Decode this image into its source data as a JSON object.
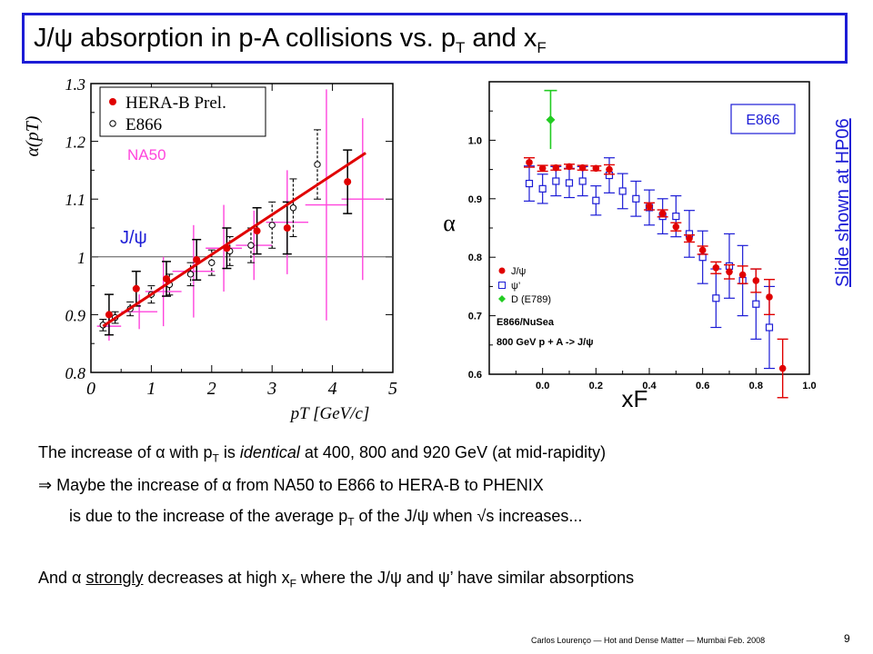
{
  "slide": {
    "title_main": "J/ψ absorption in p-A collisions vs. p",
    "title_sub1": "T",
    "title_mid": " and x",
    "title_sub2": "F",
    "side_link": "Slide shown at HP06",
    "footer": "Carlos Lourenço — Hot and Dense Matter — Mumbai Feb. 2008",
    "page_number": "9",
    "line1_a": "The increase of α with p",
    "line1_sub": "T",
    "line1_b": " is ",
    "line1_em": "identical",
    "line1_c": " at 400, 800 and 920 GeV (at mid-rapidity)",
    "line2": "⇒ Maybe the increase of α from NA50 to E866 to HERA-B to PHENIX",
    "line3_a": "is due to the increase of the average p",
    "line3_sub": "T",
    "line3_b": " of the J/ψ when √s increases...",
    "line4_a": "And α ",
    "line4_u": "strongly",
    "line4_b": " decreases at high x",
    "line4_sub": "F",
    "line4_c": " where the J/ψ and ψ’ have similar absorptions"
  },
  "chart_data": [
    {
      "type": "scatter",
      "xlabel": "p_T [GeV/c]",
      "ylabel": "α(p_T)",
      "xlim": [
        0,
        5
      ],
      "ylim": [
        0.8,
        1.3
      ],
      "xticks": [
        "0",
        "1",
        "2",
        "3",
        "4",
        "5"
      ],
      "yticks": [
        "0.8",
        "0.9",
        "1",
        "1.1",
        "1.2",
        "1.3"
      ],
      "legend": [
        "HERA-B Prel.",
        "E866"
      ],
      "legend_position": "top-left",
      "annotations": [
        "NA50",
        "J/ψ"
      ],
      "colors": {
        "herab": "#e00000",
        "na50": "#ff44dd",
        "fit": "#e00000",
        "e866": "#000000"
      },
      "fit_line": {
        "x": [
          0.2,
          4.55
        ],
        "y": [
          0.88,
          1.18
        ]
      },
      "reference_y": 1.0,
      "series": [
        {
          "name": "HERA-B Prel.",
          "x": [
            0.3,
            0.75,
            1.25,
            1.75,
            2.25,
            2.75,
            3.25,
            4.25
          ],
          "y": [
            0.9,
            0.945,
            0.962,
            0.995,
            1.015,
            1.045,
            1.05,
            1.13
          ],
          "err": [
            0.035,
            0.03,
            0.03,
            0.035,
            0.035,
            0.04,
            0.045,
            0.055
          ]
        },
        {
          "name": "E866",
          "x": [
            0.2,
            0.4,
            0.65,
            1.0,
            1.3,
            1.65,
            2.0,
            2.3,
            2.65,
            3.0,
            3.35,
            3.75
          ],
          "y": [
            0.882,
            0.895,
            0.91,
            0.935,
            0.952,
            0.97,
            0.99,
            1.01,
            1.02,
            1.055,
            1.085,
            1.16
          ],
          "err": [
            0.01,
            0.01,
            0.012,
            0.015,
            0.018,
            0.02,
            0.022,
            0.025,
            0.03,
            0.04,
            0.05,
            0.06
          ]
        },
        {
          "name": "NA50",
          "x": [
            0.3,
            0.8,
            1.2,
            1.7,
            2.2,
            2.7,
            3.25,
            3.9,
            4.5
          ],
          "y": [
            0.88,
            0.905,
            0.94,
            0.975,
            1.015,
            1.02,
            1.06,
            1.09,
            1.1
          ],
          "err": [
            0.025,
            0.03,
            0.06,
            0.08,
            0.075,
            0.06,
            0.09,
            0.2,
            0.14
          ],
          "xerr": [
            0.2,
            0.3,
            0.3,
            0.35,
            0.3,
            0.3,
            0.35,
            0.35,
            0.35
          ]
        }
      ]
    },
    {
      "type": "scatter",
      "xlabel": "x_F",
      "ylabel": "α",
      "xlim": [
        -0.2,
        1.0
      ],
      "ylim": [
        0.6,
        1.1
      ],
      "xticks": [
        "0.0",
        "0.2",
        "0.4",
        "0.6",
        "0.8",
        "1.0"
      ],
      "yticks": [
        "0.6",
        "0.7",
        "0.8",
        "0.9",
        "1.0"
      ],
      "legend": [
        "J/ψ",
        "ψ’",
        "D (E789)"
      ],
      "legend_position": "bottom-left",
      "annotations": [
        "E866/NuSea",
        "800 GeV p + A -> J/ψ",
        "E866"
      ],
      "colors": {
        "jpsi": "#e00000",
        "psiprime": "#1c1cd6",
        "d": "#22cc22"
      },
      "series": [
        {
          "name": "J/ψ",
          "x": [
            -0.05,
            0.0,
            0.05,
            0.1,
            0.15,
            0.2,
            0.25,
            0.4,
            0.45,
            0.5,
            0.55,
            0.6,
            0.65,
            0.7,
            0.75,
            0.8,
            0.85,
            0.9
          ],
          "y": [
            0.962,
            0.952,
            0.953,
            0.955,
            0.953,
            0.952,
            0.95,
            0.887,
            0.875,
            0.852,
            0.832,
            0.812,
            0.782,
            0.775,
            0.77,
            0.76,
            0.732,
            0.61
          ],
          "err": [
            0.008,
            0.005,
            0.004,
            0.004,
            0.004,
            0.004,
            0.008,
            0.006,
            0.006,
            0.007,
            0.006,
            0.007,
            0.01,
            0.012,
            0.015,
            0.02,
            0.03,
            0.05
          ]
        },
        {
          "name": "ψ’",
          "x": [
            -0.05,
            0.0,
            0.05,
            0.1,
            0.15,
            0.2,
            0.25,
            0.3,
            0.35,
            0.4,
            0.45,
            0.5,
            0.55,
            0.6,
            0.65,
            0.7,
            0.75,
            0.8,
            0.85
          ],
          "y": [
            0.926,
            0.917,
            0.93,
            0.927,
            0.93,
            0.897,
            0.94,
            0.913,
            0.9,
            0.885,
            0.87,
            0.87,
            0.84,
            0.8,
            0.73,
            0.785,
            0.76,
            0.72,
            0.68
          ],
          "err": [
            0.03,
            0.025,
            0.025,
            0.025,
            0.025,
            0.025,
            0.03,
            0.03,
            0.03,
            0.03,
            0.03,
            0.035,
            0.04,
            0.045,
            0.05,
            0.055,
            0.06,
            0.06,
            0.07
          ]
        },
        {
          "name": "D (E789)",
          "x": [
            0.03
          ],
          "y": [
            1.035
          ],
          "err": [
            0.05
          ]
        }
      ]
    }
  ]
}
